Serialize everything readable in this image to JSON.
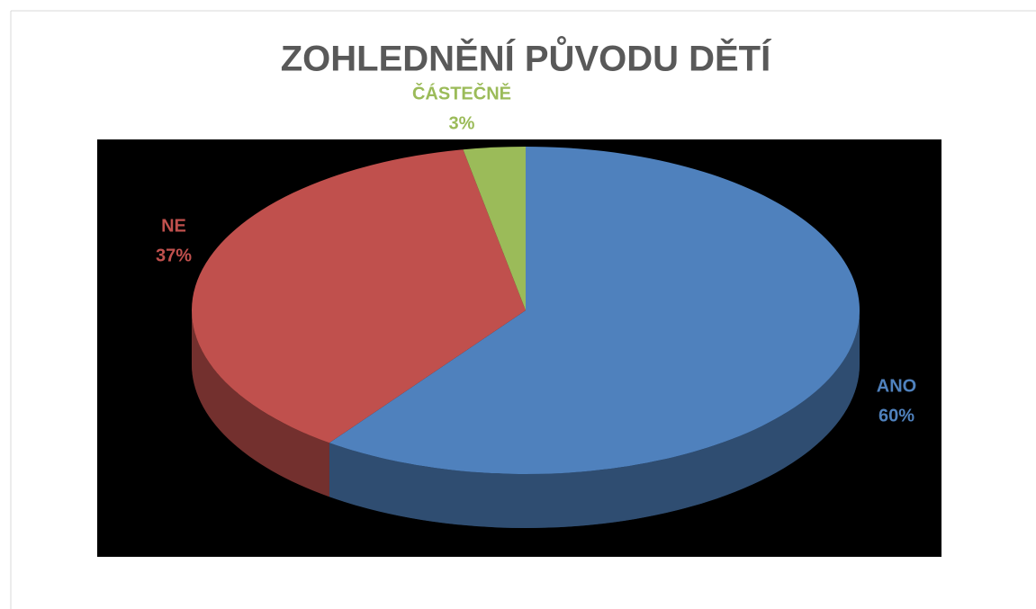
{
  "chart_data": {
    "type": "pie",
    "title": "ZOHLEDNĚNÍ PŮVODU DĚTÍ",
    "categories": [
      "ANO",
      "NE",
      "ČÁSTEČNĚ"
    ],
    "values": [
      60,
      37,
      3
    ],
    "value_labels": [
      "60%",
      "37%",
      "3%"
    ],
    "colors": [
      "#4f81bd",
      "#c0504d",
      "#9bbb59"
    ]
  }
}
